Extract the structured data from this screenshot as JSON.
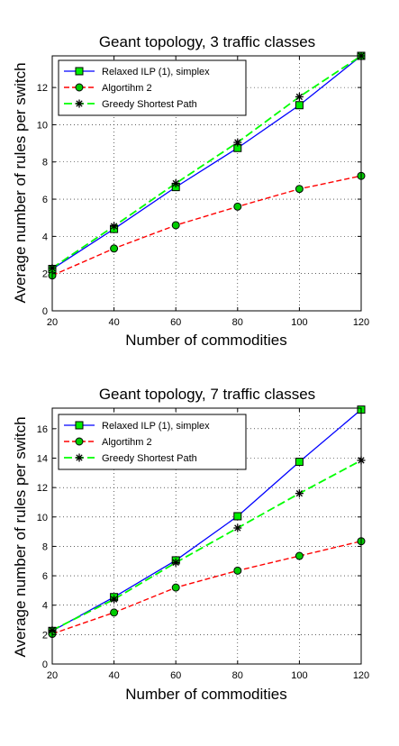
{
  "chart_data": [
    {
      "type": "line",
      "title": "Geant topology, 3 traffic classes",
      "xlabel": "Number of commodities",
      "ylabel": "Average number of rules per switch",
      "x": [
        20,
        40,
        60,
        80,
        100,
        120
      ],
      "xlim": [
        20,
        120
      ],
      "ylim": [
        0,
        13.7
      ],
      "xticks": [
        "20",
        "40",
        "60",
        "80",
        "100",
        "120"
      ],
      "yticks": [
        "0",
        "2",
        "4",
        "6",
        "8",
        "10",
        "12"
      ],
      "grid": true,
      "legend_position": "top-left",
      "series": [
        {
          "name": "Relaxed ILP (1), simplex",
          "color": "#0000ff",
          "marker": "square",
          "values": [
            2.25,
            4.4,
            6.65,
            8.75,
            11.05,
            13.7
          ]
        },
        {
          "name": "Algortihm 2",
          "color": "#ff0000",
          "marker": "circle",
          "values": [
            1.9,
            3.35,
            4.6,
            5.6,
            6.55,
            7.25
          ]
        },
        {
          "name": "Greedy Shortest Path",
          "color": "#00ff00",
          "marker": "star",
          "values": [
            2.3,
            4.55,
            6.85,
            9.05,
            11.5,
            13.7
          ]
        }
      ]
    },
    {
      "type": "line",
      "title": "Geant topology, 7 traffic classes",
      "xlabel": "Number of commodities",
      "ylabel": "Average number of rules per switch",
      "x": [
        20,
        40,
        60,
        80,
        100,
        120
      ],
      "xlim": [
        20,
        120
      ],
      "ylim": [
        0,
        17.4
      ],
      "xticks": [
        "20",
        "40",
        "60",
        "80",
        "100",
        "120"
      ],
      "yticks": [
        "0",
        "2",
        "4",
        "6",
        "8",
        "10",
        "12",
        "14",
        "16"
      ],
      "grid": true,
      "legend_position": "top-left",
      "series": [
        {
          "name": "Relaxed ILP (1), simplex",
          "color": "#0000ff",
          "marker": "square",
          "values": [
            2.25,
            4.55,
            7.05,
            10.05,
            13.75,
            17.3
          ]
        },
        {
          "name": "Algortihm 2",
          "color": "#ff0000",
          "marker": "circle",
          "values": [
            2.05,
            3.5,
            5.2,
            6.35,
            7.35,
            8.35
          ]
        },
        {
          "name": "Greedy Shortest Path",
          "color": "#00ff00",
          "marker": "star",
          "values": [
            2.3,
            4.4,
            6.9,
            9.25,
            11.6,
            13.85
          ]
        }
      ]
    }
  ]
}
